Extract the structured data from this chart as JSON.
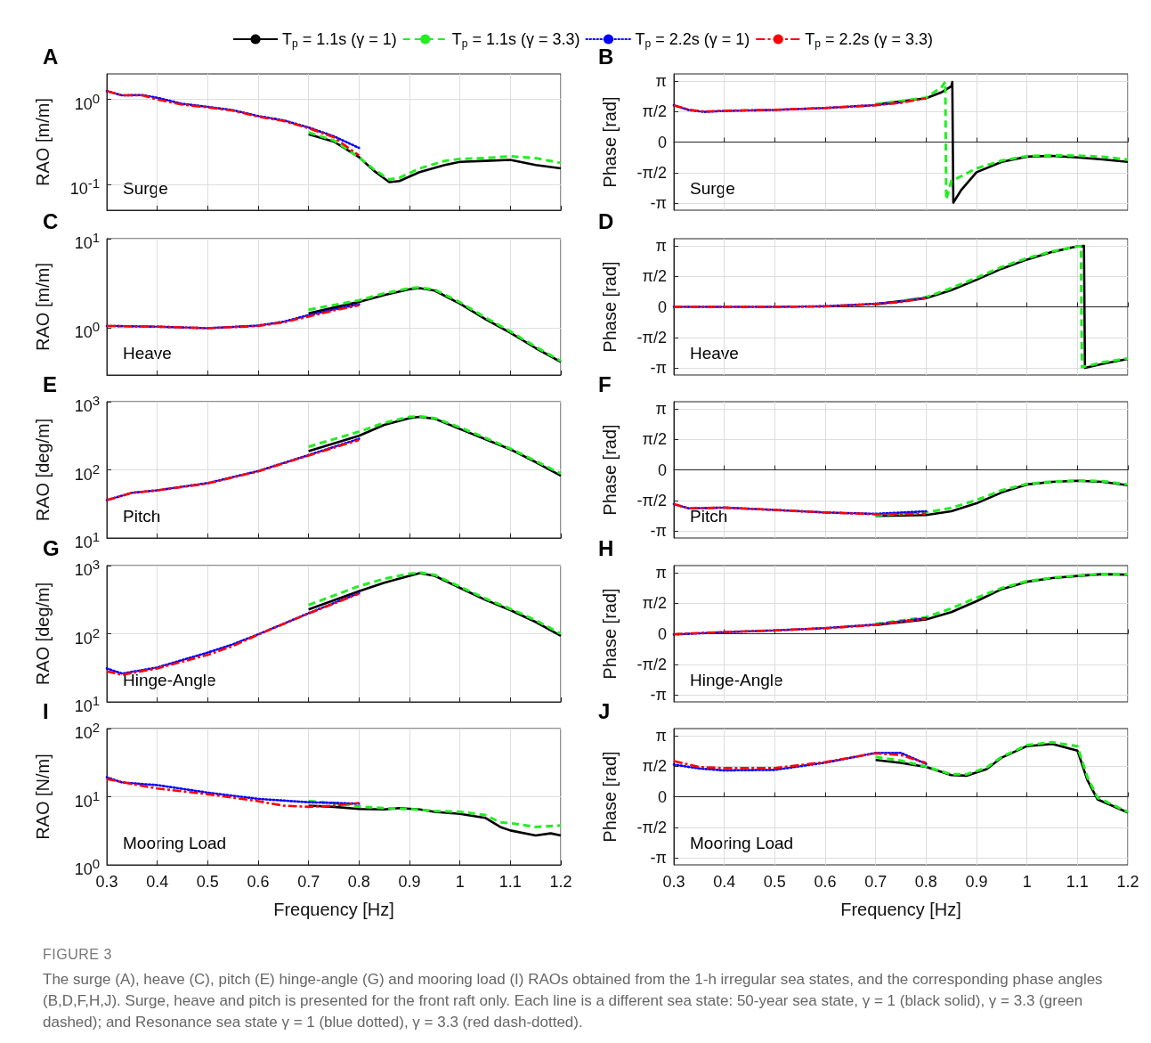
{
  "chart_data": [
    {
      "type": "line",
      "log": true,
      "ylabel": "RAO [m/m]",
      "annotations": [
        "A",
        "Surge"
      ],
      "legend": "top",
      "grid": true,
      "tick_labels": "y",
      "xlim": [
        0.3,
        1.2
      ],
      "xticks": [
        0.3,
        0.4,
        0.5,
        0.6,
        0.7,
        0.8,
        0.9,
        1,
        1.1,
        1.2
      ],
      "ylim": [
        0.05,
        2
      ],
      "yticks": [
        {
          "value": 0.1,
          "label": "10$^{-1}$"
        },
        {
          "value": 1,
          "label": "10$^{0}$"
        }
      ],
      "series": [
        {
          "name": "T$_{p}$ = 1.1s (γ = 1)",
          "color": "#000000",
          "line_style": "solid",
          "x": [
            0.7,
            0.75,
            0.8,
            0.83,
            0.86,
            0.88,
            0.92,
            0.97,
            1.0,
            1.05,
            1.1,
            1.15,
            1.2
          ],
          "values": [
            0.39,
            0.32,
            0.21,
            0.145,
            0.107,
            0.11,
            0.14,
            0.17,
            0.185,
            0.19,
            0.195,
            0.17,
            0.155
          ]
        },
        {
          "name": "T$_{p}$ = 1.1s (γ = 3.3)",
          "color": "#22ee22",
          "line_style": "dashed",
          "x": [
            0.7,
            0.75,
            0.8,
            0.83,
            0.86,
            0.88,
            0.92,
            0.97,
            1.0,
            1.05,
            1.1,
            1.15,
            1.2
          ],
          "values": [
            0.41,
            0.33,
            0.21,
            0.15,
            0.115,
            0.12,
            0.155,
            0.19,
            0.2,
            0.205,
            0.215,
            0.205,
            0.18
          ]
        },
        {
          "name": "T$_{p}$ = 2.2s (γ = 1)",
          "color": "#0000ff",
          "line_style": "dotted",
          "x": [
            0.3,
            0.33,
            0.37,
            0.4,
            0.45,
            0.5,
            0.55,
            0.6,
            0.65,
            0.7,
            0.75,
            0.8
          ],
          "values": [
            1.26,
            1.12,
            1.13,
            1.05,
            0.89,
            0.82,
            0.75,
            0.64,
            0.57,
            0.47,
            0.37,
            0.27
          ]
        },
        {
          "name": "T$_{p}$ = 2.2s (γ = 3.3)",
          "color": "#ff0000",
          "line_style": "dashdot",
          "x": [
            0.3,
            0.33,
            0.37,
            0.4,
            0.45,
            0.5,
            0.55,
            0.6,
            0.65,
            0.7,
            0.75,
            0.8
          ],
          "values": [
            1.26,
            1.12,
            1.12,
            1.0,
            0.87,
            0.81,
            0.74,
            0.63,
            0.56,
            0.46,
            0.36,
            0.22
          ]
        }
      ]
    },
    {
      "type": "line",
      "ylabel": "Phase [rad]",
      "annotations": [
        "B",
        "Surge"
      ],
      "grid": true,
      "tick_labels": "y",
      "xlim": [
        0.3,
        1.2
      ],
      "xticks": [
        0.3,
        0.4,
        0.5,
        0.6,
        0.7,
        0.8,
        0.9,
        1,
        1.1,
        1.2
      ],
      "ylim": [
        -3.5,
        3.5
      ],
      "yticks": [
        {
          "value": -3.1416,
          "label": "-π"
        },
        {
          "value": -1.5708,
          "label": "-π/2"
        },
        {
          "value": 0,
          "label": "0"
        },
        {
          "value": 1.5708,
          "label": "π/2"
        },
        {
          "value": 3.1416,
          "label": "π"
        }
      ],
      "series": [
        {
          "color": "#000000",
          "line_style": "solid",
          "x": [
            0.7,
            0.8,
            0.83,
            0.85,
            0.852,
            0.854,
            0.87,
            0.9,
            0.95,
            1.0,
            1.05,
            1.1,
            1.15,
            1.2
          ],
          "values": [
            1.93,
            2.25,
            2.55,
            2.86,
            3.09,
            -3.11,
            -2.45,
            -1.55,
            -1.02,
            -0.75,
            -0.71,
            -0.79,
            -0.89,
            -1.02
          ]
        },
        {
          "color": "#22ee22",
          "line_style": "dashed",
          "x": [
            0.7,
            0.8,
            0.83,
            0.838,
            0.84,
            0.85,
            0.87,
            0.9,
            0.95,
            1.0,
            1.05,
            1.1,
            1.15,
            1.2
          ],
          "values": [
            1.95,
            2.28,
            2.8,
            3.1,
            -2.95,
            -2.0,
            -1.75,
            -1.35,
            -0.95,
            -0.72,
            -0.68,
            -0.7,
            -0.75,
            -0.9
          ]
        },
        {
          "color": "#0000ff",
          "line_style": "dotted",
          "x": [
            0.3,
            0.33,
            0.36,
            0.4,
            0.5,
            0.6,
            0.7,
            0.75
          ],
          "values": [
            1.89,
            1.64,
            1.55,
            1.6,
            1.65,
            1.75,
            1.9,
            2.03
          ]
        },
        {
          "color": "#ff0000",
          "line_style": "dashdot",
          "x": [
            0.3,
            0.33,
            0.36,
            0.4,
            0.5,
            0.6,
            0.7,
            0.75,
            0.8
          ],
          "values": [
            1.89,
            1.66,
            1.57,
            1.61,
            1.66,
            1.75,
            1.89,
            2.02,
            2.25
          ]
        }
      ]
    },
    {
      "type": "line",
      "log": true,
      "ylabel": "RAO [m/m]",
      "annotations": [
        "C",
        "Heave"
      ],
      "grid": true,
      "tick_labels": "y",
      "xlim": [
        0.3,
        1.2
      ],
      "xticks": [
        0.3,
        0.4,
        0.5,
        0.6,
        0.7,
        0.8,
        0.9,
        1,
        1.1,
        1.2
      ],
      "ylim": [
        0.3,
        10
      ],
      "yticks": [
        {
          "value": 1,
          "label": "10$^{0}$"
        },
        {
          "value": 10,
          "label": "10$^{1}$"
        }
      ],
      "series": [
        {
          "color": "#000000",
          "line_style": "solid",
          "x": [
            0.7,
            0.8,
            0.85,
            0.9,
            0.92,
            0.95,
            1.0,
            1.05,
            1.1,
            1.15,
            1.2
          ],
          "values": [
            1.47,
            1.97,
            2.35,
            2.72,
            2.8,
            2.63,
            1.88,
            1.27,
            0.89,
            0.6,
            0.42
          ]
        },
        {
          "color": "#22ee22",
          "line_style": "dashed",
          "x": [
            0.7,
            0.8,
            0.85,
            0.9,
            0.92,
            0.95,
            1.0,
            1.05,
            1.1,
            1.15,
            1.2
          ],
          "values": [
            1.61,
            2.05,
            2.45,
            2.8,
            2.85,
            2.7,
            1.95,
            1.32,
            0.92,
            0.62,
            0.43
          ]
        },
        {
          "color": "#0000ff",
          "line_style": "dotted",
          "x": [
            0.3,
            0.4,
            0.5,
            0.6,
            0.65,
            0.7,
            0.75,
            0.8
          ],
          "values": [
            1.06,
            1.04,
            1.0,
            1.07,
            1.18,
            1.4,
            1.62,
            1.85
          ]
        },
        {
          "color": "#ff0000",
          "line_style": "dashdot",
          "x": [
            0.3,
            0.4,
            0.5,
            0.6,
            0.65,
            0.7,
            0.75,
            0.8
          ],
          "values": [
            1.06,
            1.04,
            1.0,
            1.06,
            1.16,
            1.35,
            1.58,
            1.8
          ]
        }
      ]
    },
    {
      "type": "line",
      "ylabel": "Phase [rad]",
      "annotations": [
        "D",
        "Heave"
      ],
      "grid": true,
      "tick_labels": "y",
      "xlim": [
        0.3,
        1.2
      ],
      "xticks": [
        0.3,
        0.4,
        0.5,
        0.6,
        0.7,
        0.8,
        0.9,
        1,
        1.1,
        1.2
      ],
      "ylim": [
        -3.5,
        3.5
      ],
      "yticks": [
        {
          "value": -3.1416,
          "label": "-π"
        },
        {
          "value": -1.5708,
          "label": "-π/2"
        },
        {
          "value": 0,
          "label": "0"
        },
        {
          "value": 1.5708,
          "label": "π/2"
        },
        {
          "value": 3.1416,
          "label": "π"
        }
      ],
      "series": [
        {
          "color": "#000000",
          "line_style": "solid",
          "x": [
            0.7,
            0.8,
            0.85,
            0.9,
            0.95,
            1.0,
            1.05,
            1.1,
            1.113,
            1.115,
            1.15,
            1.2
          ],
          "values": [
            0.14,
            0.45,
            0.86,
            1.39,
            1.96,
            2.43,
            2.82,
            3.11,
            3.13,
            -3.13,
            -2.93,
            -2.68
          ]
        },
        {
          "color": "#22ee22",
          "line_style": "dashed",
          "x": [
            0.75,
            0.8,
            0.85,
            0.9,
            0.95,
            1.0,
            1.05,
            1.1,
            1.107,
            1.109,
            1.15,
            1.2
          ],
          "values": [
            0.3,
            0.5,
            0.96,
            1.5,
            2.05,
            2.5,
            2.85,
            3.1,
            3.12,
            -3.1,
            -2.85,
            -2.65
          ]
        },
        {
          "color": "#0000ff",
          "line_style": "dotted",
          "x": [
            0.3,
            0.4,
            0.5,
            0.6,
            0.7,
            0.75,
            0.8
          ],
          "values": [
            0,
            0,
            0,
            0.03,
            0.16,
            0.27,
            0.47
          ]
        },
        {
          "color": "#ff0000",
          "line_style": "dashdot",
          "x": [
            0.3,
            0.4,
            0.5,
            0.6,
            0.7,
            0.75,
            0.8
          ],
          "values": [
            0,
            0,
            0,
            0.02,
            0.14,
            0.25,
            0.45
          ]
        }
      ]
    },
    {
      "type": "line",
      "log": true,
      "ylabel": "RAO [deg/m]",
      "annotations": [
        "E",
        "Pitch"
      ],
      "grid": true,
      "tick_labels": "y",
      "xlim": [
        0.3,
        1.2
      ],
      "xticks": [
        0.3,
        0.4,
        0.5,
        0.6,
        0.7,
        0.8,
        0.9,
        1,
        1.1,
        1.2
      ],
      "ylim": [
        10,
        1000
      ],
      "yticks": [
        {
          "value": 10,
          "label": "10$^{1}$"
        },
        {
          "value": 100,
          "label": "10$^{2}$"
        },
        {
          "value": 1000,
          "label": "10$^{3}$"
        }
      ],
      "series": [
        {
          "color": "#000000",
          "line_style": "solid",
          "x": [
            0.7,
            0.8,
            0.85,
            0.9,
            0.92,
            0.95,
            1.0,
            1.05,
            1.1,
            1.15,
            1.2
          ],
          "values": [
            188,
            316,
            457,
            575,
            600,
            562,
            398,
            282,
            200,
            130,
            82
          ]
        },
        {
          "color": "#22ee22",
          "line_style": "dashed",
          "x": [
            0.7,
            0.8,
            0.85,
            0.9,
            0.92,
            0.95,
            1.0,
            1.05,
            1.1,
            1.15,
            1.2
          ],
          "values": [
            219,
            363,
            490,
            600,
            610,
            575,
            420,
            295,
            205,
            135,
            88
          ]
        },
        {
          "color": "#0000ff",
          "line_style": "dotted",
          "x": [
            0.3,
            0.35,
            0.4,
            0.5,
            0.6,
            0.7,
            0.8
          ],
          "values": [
            36,
            46,
            50,
            64,
            96,
            165,
            285
          ]
        },
        {
          "color": "#ff0000",
          "line_style": "dashdot",
          "x": [
            0.3,
            0.35,
            0.4,
            0.5,
            0.6,
            0.7,
            0.8
          ],
          "values": [
            36,
            46,
            50,
            63,
            95,
            162,
            275
          ]
        }
      ]
    },
    {
      "type": "line",
      "ylabel": "Phase [rad]",
      "annotations": [
        "F",
        "Pitch"
      ],
      "grid": true,
      "tick_labels": "y",
      "xlim": [
        0.3,
        1.2
      ],
      "xticks": [
        0.3,
        0.4,
        0.5,
        0.6,
        0.7,
        0.8,
        0.9,
        1,
        1.1,
        1.2
      ],
      "ylim": [
        -3.5,
        3.5
      ],
      "yticks": [
        {
          "value": -3.1416,
          "label": "-π"
        },
        {
          "value": -1.5708,
          "label": "-π/2"
        },
        {
          "value": 0,
          "label": "0"
        },
        {
          "value": 1.5708,
          "label": "π/2"
        },
        {
          "value": 3.1416,
          "label": "π"
        }
      ],
      "series": [
        {
          "color": "#000000",
          "line_style": "solid",
          "x": [
            0.7,
            0.8,
            0.85,
            0.9,
            0.95,
            1.0,
            1.05,
            1.1,
            1.15,
            1.2
          ],
          "values": [
            -2.37,
            -2.32,
            -2.13,
            -1.72,
            -1.16,
            -0.75,
            -0.62,
            -0.56,
            -0.62,
            -0.79
          ]
        },
        {
          "color": "#22ee22",
          "line_style": "dashed",
          "x": [
            0.7,
            0.8,
            0.85,
            0.9,
            0.95,
            1.0,
            1.05,
            1.1,
            1.15,
            1.2
          ],
          "values": [
            -2.33,
            -2.2,
            -1.95,
            -1.55,
            -1.05,
            -0.72,
            -0.6,
            -0.55,
            -0.58,
            -0.75
          ]
        },
        {
          "color": "#0000ff",
          "line_style": "dotted",
          "x": [
            0.3,
            0.33,
            0.4,
            0.5,
            0.6,
            0.7,
            0.8
          ],
          "values": [
            -1.76,
            -1.98,
            -1.94,
            -2.06,
            -2.19,
            -2.26,
            -2.13
          ]
        },
        {
          "color": "#ff0000",
          "line_style": "dashdot",
          "x": [
            0.3,
            0.33,
            0.4,
            0.5,
            0.6,
            0.7,
            0.8
          ],
          "values": [
            -1.76,
            -1.98,
            -1.94,
            -2.06,
            -2.19,
            -2.28,
            -2.26
          ]
        }
      ]
    },
    {
      "type": "line",
      "log": true,
      "ylabel": "RAO [deg/m]",
      "annotations": [
        "G",
        "Hinge-Angle"
      ],
      "grid": true,
      "tick_labels": "y",
      "xlim": [
        0.3,
        1.2
      ],
      "xticks": [
        0.3,
        0.4,
        0.5,
        0.6,
        0.7,
        0.8,
        0.9,
        1,
        1.1,
        1.2
      ],
      "ylim": [
        10,
        1000
      ],
      "yticks": [
        {
          "value": 10,
          "label": "10$^{1}$"
        },
        {
          "value": 100,
          "label": "10$^{2}$"
        },
        {
          "value": 1000,
          "label": "10$^{3}$"
        }
      ],
      "series": [
        {
          "color": "#000000",
          "line_style": "solid",
          "x": [
            0.7,
            0.8,
            0.85,
            0.9,
            0.92,
            0.95,
            1.0,
            1.05,
            1.1,
            1.15,
            1.2
          ],
          "values": [
            227,
            420,
            560,
            707,
            775,
            707,
            471,
            315,
            222,
            149,
            93
          ]
        },
        {
          "color": "#22ee22",
          "line_style": "dashed",
          "x": [
            0.7,
            0.8,
            0.85,
            0.9,
            0.92,
            0.95,
            1.0,
            1.05,
            1.1,
            1.15,
            1.2
          ],
          "values": [
            264,
            500,
            640,
            760,
            790,
            730,
            490,
            330,
            232,
            158,
            100
          ]
        },
        {
          "color": "#0000ff",
          "line_style": "dotted",
          "x": [
            0.3,
            0.33,
            0.4,
            0.5,
            0.55,
            0.6,
            0.7,
            0.8
          ],
          "values": [
            31,
            26,
            32,
            53,
            70,
            98,
            200,
            395
          ]
        },
        {
          "color": "#ff0000",
          "line_style": "dashdot",
          "x": [
            0.3,
            0.33,
            0.4,
            0.5,
            0.55,
            0.6,
            0.7,
            0.8
          ],
          "values": [
            28,
            25,
            31,
            49,
            66,
            97,
            198,
            387
          ]
        }
      ]
    },
    {
      "type": "line",
      "ylabel": "Phase [rad]",
      "annotations": [
        "H",
        "Hinge-Angle"
      ],
      "grid": true,
      "tick_labels": "y",
      "xlim": [
        0.3,
        1.2
      ],
      "xticks": [
        0.3,
        0.4,
        0.5,
        0.6,
        0.7,
        0.8,
        0.9,
        1,
        1.1,
        1.2
      ],
      "ylim": [
        -3.5,
        3.5
      ],
      "yticks": [
        {
          "value": -3.1416,
          "label": "-π"
        },
        {
          "value": -1.5708,
          "label": "-π/2"
        },
        {
          "value": 0,
          "label": "0"
        },
        {
          "value": 1.5708,
          "label": "π/2"
        },
        {
          "value": 3.1416,
          "label": "π"
        }
      ],
      "series": [
        {
          "color": "#000000",
          "line_style": "solid",
          "x": [
            0.7,
            0.8,
            0.85,
            0.9,
            0.95,
            1.0,
            1.05,
            1.1,
            1.15,
            1.2
          ],
          "values": [
            0.45,
            0.73,
            1.11,
            1.67,
            2.29,
            2.67,
            2.86,
            2.97,
            3.06,
            3.03
          ]
        },
        {
          "color": "#22ee22",
          "line_style": "dashed",
          "x": [
            0.7,
            0.8,
            0.85,
            0.9,
            0.95,
            1.0,
            1.05,
            1.1,
            1.15,
            1.2
          ],
          "values": [
            0.5,
            0.85,
            1.3,
            1.85,
            2.35,
            2.7,
            2.88,
            2.98,
            3.07,
            3.05
          ]
        },
        {
          "color": "#0000ff",
          "line_style": "dotted",
          "x": [
            0.3,
            0.4,
            0.5,
            0.6,
            0.7,
            0.8
          ],
          "values": [
            -0.04,
            0.08,
            0.17,
            0.29,
            0.47,
            0.8
          ]
        },
        {
          "color": "#ff0000",
          "line_style": "dashdot",
          "x": [
            0.3,
            0.4,
            0.5,
            0.6,
            0.7,
            0.8
          ],
          "values": [
            -0.02,
            0.09,
            0.17,
            0.28,
            0.45,
            0.77
          ]
        }
      ]
    },
    {
      "type": "line",
      "log": true,
      "ylabel": "RAO [N/m]",
      "xlabel": "Frequency [Hz]",
      "annotations": [
        "I",
        "Mooring Load"
      ],
      "grid": true,
      "xlim": [
        0.3,
        1.2
      ],
      "xticks": [
        0.3,
        0.4,
        0.5,
        0.6,
        0.7,
        0.8,
        0.9,
        1,
        1.1,
        1.2
      ],
      "ylim": [
        1,
        100
      ],
      "yticks": [
        {
          "value": 1,
          "label": "10$^{0}$"
        },
        {
          "value": 10,
          "label": "10$^{1}$"
        },
        {
          "value": 100,
          "label": "10$^{2}$"
        }
      ],
      "series": [
        {
          "color": "#000000",
          "line_style": "solid",
          "x": [
            0.7,
            0.75,
            0.8,
            0.85,
            0.88,
            0.92,
            0.95,
            1.0,
            1.05,
            1.08,
            1.1,
            1.15,
            1.18,
            1.2
          ],
          "values": [
            7.4,
            7.1,
            6.6,
            6.5,
            6.8,
            6.5,
            6.0,
            5.6,
            4.9,
            3.6,
            3.2,
            2.7,
            2.9,
            2.7
          ]
        },
        {
          "color": "#22ee22",
          "line_style": "dashed",
          "x": [
            0.7,
            0.75,
            0.8,
            0.85,
            0.9,
            0.95,
            1.0,
            1.05,
            1.08,
            1.1,
            1.15,
            1.2
          ],
          "values": [
            8.6,
            8.1,
            7.2,
            6.8,
            6.6,
            6.2,
            6.0,
            5.4,
            4.2,
            4.1,
            3.6,
            3.8
          ]
        },
        {
          "color": "#0000ff",
          "line_style": "dotted",
          "x": [
            0.3,
            0.33,
            0.4,
            0.5,
            0.6,
            0.7,
            0.75,
            0.8
          ],
          "values": [
            19.3,
            16.2,
            14.8,
            11.5,
            9.3,
            8.3,
            8.1,
            7.9
          ]
        },
        {
          "color": "#ff0000",
          "line_style": "dashdot",
          "x": [
            0.3,
            0.35,
            0.4,
            0.5,
            0.6,
            0.65,
            0.7,
            0.75,
            0.8
          ],
          "values": [
            18.2,
            15.3,
            13.2,
            10.9,
            8.6,
            7.4,
            7.1,
            7.4,
            8.1
          ]
        }
      ]
    },
    {
      "type": "line",
      "ylabel": "Phase [rad]",
      "xlabel": "Frequency [Hz]",
      "annotations": [
        "J",
        "Mooring Load",
        "FIGURE 3",
        "The surge (A), heave (C), pitch (E) hinge-angle (G) and mooring load (I) RAOs obtained from the 1-h irregular sea states, and the corresponding phase angles (B,D,F,H,J). Surge, heave and pitch is presented for the front raft only. Each line is a different sea state: 50-year sea state, γ = 1 (black solid), γ =  3.3 (green dashed); and Resonance sea state γ = 1 (blue dotted), γ =  3.3 (red dash-dotted)."
      ],
      "grid": true,
      "xlim": [
        0.3,
        1.2
      ],
      "xticks": [
        0.3,
        0.4,
        0.5,
        0.6,
        0.7,
        0.8,
        0.9,
        1,
        1.1,
        1.2
      ],
      "ylim": [
        -3.5,
        3.5
      ],
      "yticks": [
        {
          "value": -3.1416,
          "label": "-π"
        },
        {
          "value": -1.5708,
          "label": "-π/2"
        },
        {
          "value": 0,
          "label": "0"
        },
        {
          "value": 1.5708,
          "label": "π/2"
        },
        {
          "value": 3.1416,
          "label": "π"
        }
      ],
      "series": [
        {
          "color": "#000000",
          "line_style": "solid",
          "x": [
            0.7,
            0.75,
            0.8,
            0.85,
            0.88,
            0.92,
            0.95,
            1.0,
            1.05,
            1.1,
            1.12,
            1.14,
            1.2
          ],
          "values": [
            1.89,
            1.74,
            1.53,
            1.11,
            1.08,
            1.42,
            2.01,
            2.6,
            2.71,
            2.37,
            0.84,
            -0.14,
            -0.81
          ]
        },
        {
          "color": "#22ee22",
          "line_style": "dashed",
          "x": [
            0.7,
            0.75,
            0.8,
            0.85,
            0.88,
            0.92,
            0.95,
            1.0,
            1.05,
            1.1,
            1.12,
            1.14,
            1.2
          ],
          "values": [
            2.05,
            1.85,
            1.55,
            1.15,
            1.15,
            1.5,
            2.05,
            2.65,
            2.8,
            2.6,
            1.0,
            -0.05,
            -0.78
          ]
        },
        {
          "color": "#0000ff",
          "line_style": "dotted",
          "x": [
            0.3,
            0.35,
            0.4,
            0.5,
            0.6,
            0.65,
            0.7,
            0.75,
            0.8
          ],
          "values": [
            1.65,
            1.45,
            1.35,
            1.38,
            1.75,
            2.0,
            2.25,
            2.25,
            1.69
          ]
        },
        {
          "color": "#ff0000",
          "line_style": "dashdot",
          "x": [
            0.3,
            0.35,
            0.4,
            0.5,
            0.6,
            0.65,
            0.7,
            0.75,
            0.8
          ],
          "values": [
            1.83,
            1.53,
            1.47,
            1.47,
            1.78,
            2.01,
            2.23,
            2.14,
            1.74
          ]
        }
      ]
    }
  ]
}
